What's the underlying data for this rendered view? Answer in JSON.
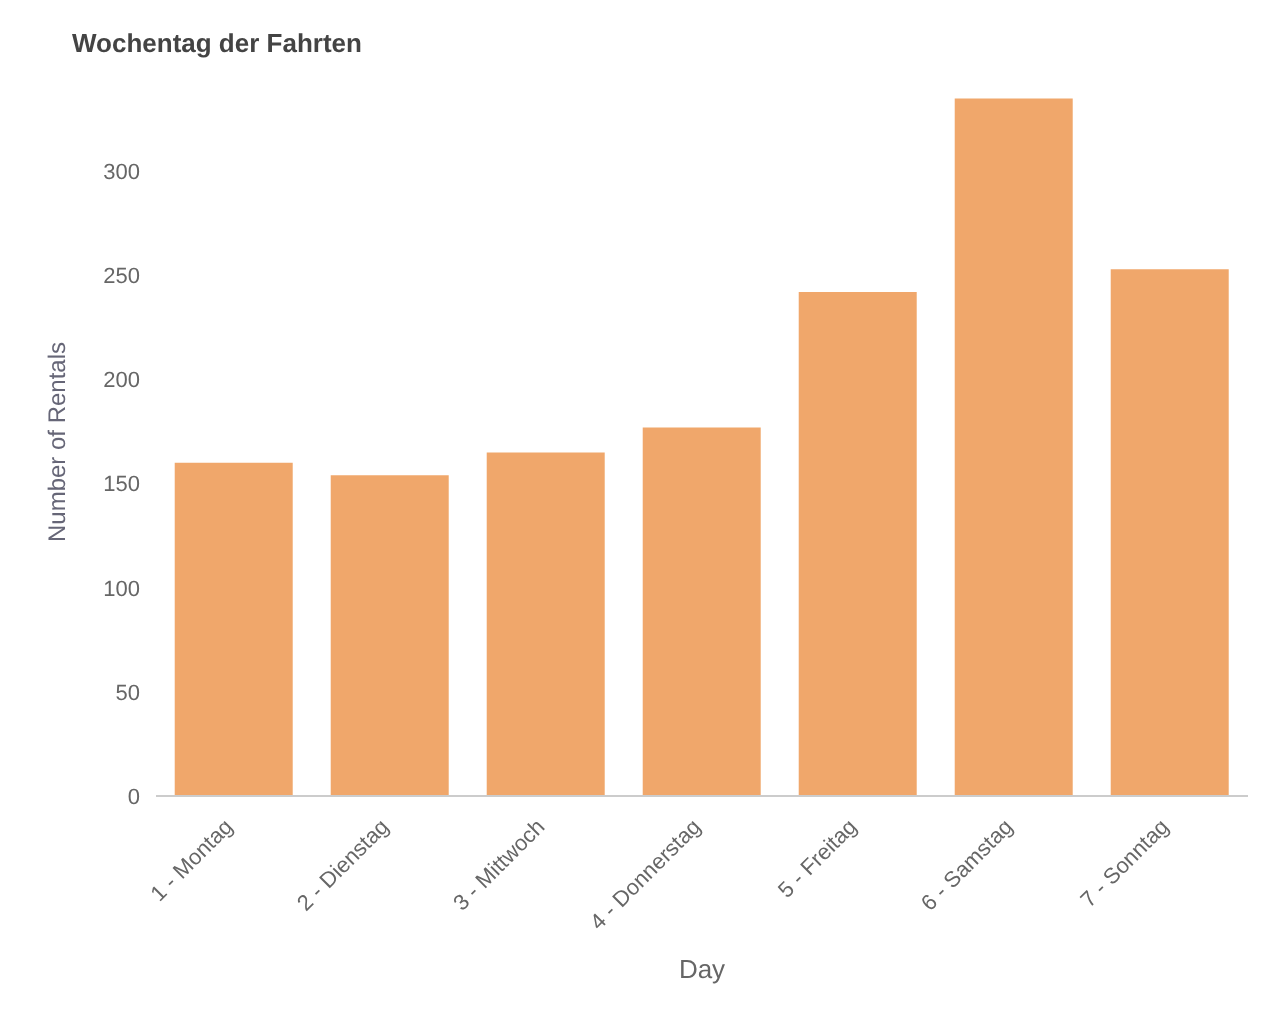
{
  "chart_data": {
    "type": "bar",
    "title": "Wochentag der Fahrten",
    "xlabel": "Day",
    "ylabel": "Number of Rentals",
    "categories": [
      "1 - Montag",
      "2 - Dienstag",
      "3 - Mittwoch",
      "4 - Donnerstag",
      "5 - Freitag",
      "6 - Samstag",
      "7 - Sonntag"
    ],
    "values": [
      160,
      154,
      165,
      177,
      242,
      335,
      253
    ],
    "color": "#f0a76b",
    "ylim": [
      0,
      340
    ],
    "yticks": [
      0,
      50,
      100,
      150,
      200,
      250,
      300
    ],
    "grid": false,
    "legend": false
  }
}
